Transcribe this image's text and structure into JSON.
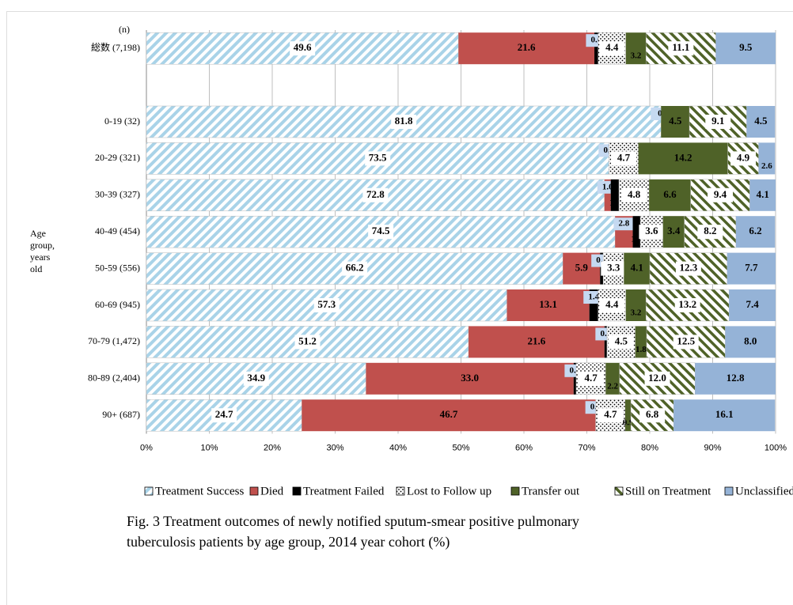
{
  "chart_data": {
    "type": "stacked_bar_horizontal",
    "count_header": "(n)",
    "ylabel_lines": [
      "Age",
      "group,",
      "years",
      "old"
    ],
    "categories": [
      "総数 (7,198)",
      null,
      "0-19 (32)",
      "20-29 (321)",
      "30-39 (327)",
      "40-49 (454)",
      "50-59 (556)",
      "60-69 (945)",
      "70-79 (1,472)",
      "80-89 (2,404)",
      "90+ (687)"
    ],
    "xlim": [
      0,
      100
    ],
    "xticks": [
      {
        "value": 0,
        "label": "0%"
      },
      {
        "value": 10,
        "label": "10%"
      },
      {
        "value": 20,
        "label": "20%"
      },
      {
        "value": 30,
        "label": "30%"
      },
      {
        "value": 40,
        "label": "40%"
      },
      {
        "value": 50,
        "label": "50%"
      },
      {
        "value": 60,
        "label": "60%"
      },
      {
        "value": 70,
        "label": "70%"
      },
      {
        "value": 80,
        "label": "80%"
      },
      {
        "value": 90,
        "label": "90%"
      },
      {
        "value": 100,
        "label": "100%"
      }
    ],
    "grid": true,
    "series": [
      {
        "name": "Treatment Success",
        "color": "#a9d3e8",
        "pattern": "stripes",
        "values": [
          49.6,
          null,
          81.8,
          73.5,
          72.8,
          74.5,
          66.2,
          57.3,
          51.2,
          34.9,
          24.7
        ],
        "value_labels": [
          "49.6",
          null,
          "81.8",
          "73.5",
          "72.8",
          "74.5",
          "66.2",
          "57.3",
          "51.2",
          "34.9",
          "24.7"
        ]
      },
      {
        "name": "Died",
        "color": "#c0504d",
        "pattern": "solid",
        "values": [
          21.6,
          null,
          null,
          null,
          1.0,
          2.8,
          5.9,
          13.1,
          21.6,
          33.0,
          46.7
        ],
        "value_labels": [
          "21.6",
          null,
          null,
          null,
          "1.0",
          "2.8",
          "5.9",
          "13.1",
          "21.6",
          "33.0",
          "46.7"
        ]
      },
      {
        "name": "Treatment Failed",
        "color": "#000000",
        "pattern": "solid",
        "values": [
          0.6,
          null,
          0.0,
          0.0,
          1.3,
          1.2,
          0.5,
          1.4,
          0.4,
          0.4,
          0.0
        ],
        "value_labels": [
          "0.6",
          null,
          "0.",
          "0.0",
          "1.3",
          "1.2",
          "0.5",
          "1.4",
          "0.4",
          "0.4",
          "0.0"
        ]
      },
      {
        "name": "Lost to Follow up",
        "color": "#000000",
        "pattern": "dots",
        "values": [
          4.4,
          null,
          null,
          4.7,
          4.8,
          3.6,
          3.3,
          4.4,
          4.5,
          4.7,
          4.7
        ],
        "value_labels": [
          "4.4",
          null,
          null,
          "4.7",
          "4.8",
          "3.6",
          "3.3",
          "4.4",
          "4.5",
          "4.7",
          "4.7"
        ]
      },
      {
        "name": "Transfer out",
        "color": "#4f6228",
        "pattern": "solid",
        "values": [
          3.2,
          null,
          4.5,
          14.2,
          6.6,
          3.4,
          4.1,
          3.2,
          1.8,
          2.2,
          0.9
        ],
        "value_labels": [
          "3.2",
          null,
          "4.5",
          "14.2",
          "6.6",
          "3.4",
          "4.1",
          "3.2",
          "1.8",
          "2.2",
          "0.9"
        ]
      },
      {
        "name": "Still on Treatment",
        "color": "#4f6228",
        "pattern": "hatch",
        "values": [
          11.1,
          null,
          9.1,
          4.9,
          9.4,
          8.2,
          12.3,
          13.2,
          12.5,
          12.0,
          6.8
        ],
        "value_labels": [
          "11.1",
          null,
          "9.1",
          "4.9",
          "9.4",
          "8.2",
          "12.3",
          "13.2",
          "12.5",
          "12.0",
          "6.8"
        ]
      },
      {
        "name": "Unclassified",
        "color": "#95b3d7",
        "pattern": "solid",
        "values": [
          9.5,
          null,
          4.5,
          2.6,
          4.1,
          6.2,
          7.7,
          7.4,
          8.0,
          12.8,
          16.1
        ],
        "value_labels": [
          "9.5",
          null,
          "4.5",
          "2.6",
          "4.1",
          "6.2",
          "7.7",
          "7.4",
          "8.0",
          "12.8",
          "16.1"
        ]
      }
    ],
    "caption": [
      "Fig. 3  Treatment outcomes of newly notified sputum-smear positive pulmonary",
      "tuberculosis patients by age group, 2014 year cohort (%)"
    ]
  }
}
